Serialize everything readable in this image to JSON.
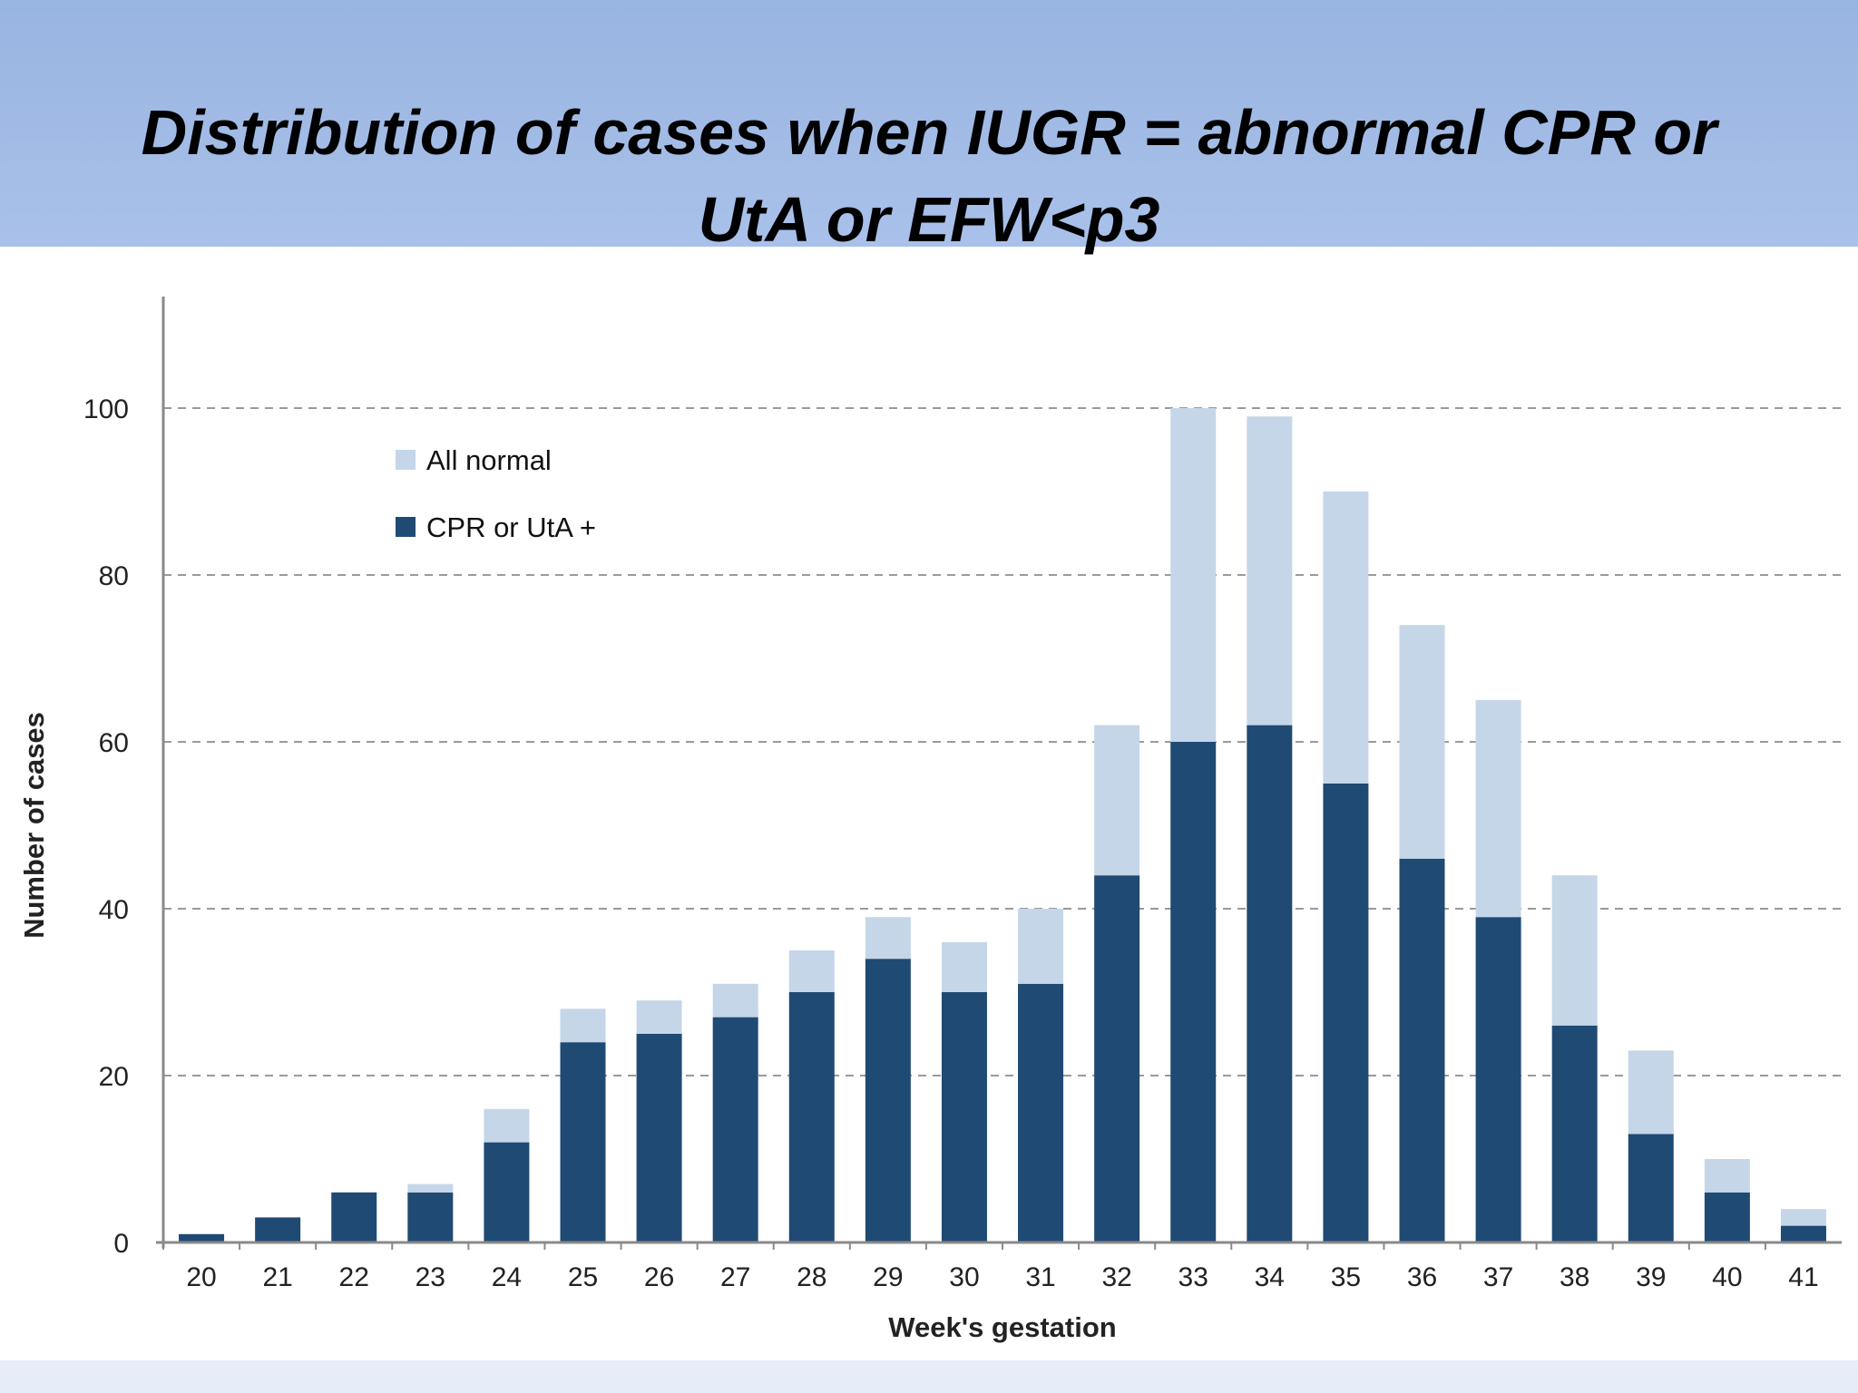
{
  "page": {
    "title": "Distribution of cases when IUGR = abnormal CPR or UtA or EFW<p3"
  },
  "chart_data": {
    "type": "bar",
    "stacked": true,
    "title": "Distribution of cases when IUGR = abnormal CPR or UtA or EFW<p3",
    "xlabel": "Week's gestation",
    "ylabel": "Number of cases",
    "ylim": [
      0,
      100
    ],
    "yticks": [
      0,
      20,
      40,
      60,
      80,
      100
    ],
    "grid": "horizontal dashed",
    "legend_position": "top-left",
    "categories": [
      "20",
      "21",
      "22",
      "23",
      "24",
      "25",
      "26",
      "27",
      "28",
      "29",
      "30",
      "31",
      "32",
      "33",
      "34",
      "35",
      "36",
      "37",
      "38",
      "39",
      "40",
      "41"
    ],
    "series": [
      {
        "name": "CPR or UtA +",
        "color": "#1f4a73",
        "values": [
          1,
          3,
          6,
          6,
          12,
          24,
          25,
          27,
          30,
          34,
          30,
          31,
          44,
          60,
          62,
          55,
          46,
          39,
          26,
          13,
          6,
          2
        ]
      },
      {
        "name": "All normal",
        "color": "#c5d6e8",
        "values": [
          0,
          0,
          0,
          1,
          4,
          4,
          4,
          4,
          5,
          5,
          6,
          9,
          18,
          40,
          37,
          35,
          28,
          26,
          18,
          10,
          4,
          2
        ]
      }
    ],
    "legend_order": [
      "All normal",
      "CPR or UtA +"
    ]
  }
}
